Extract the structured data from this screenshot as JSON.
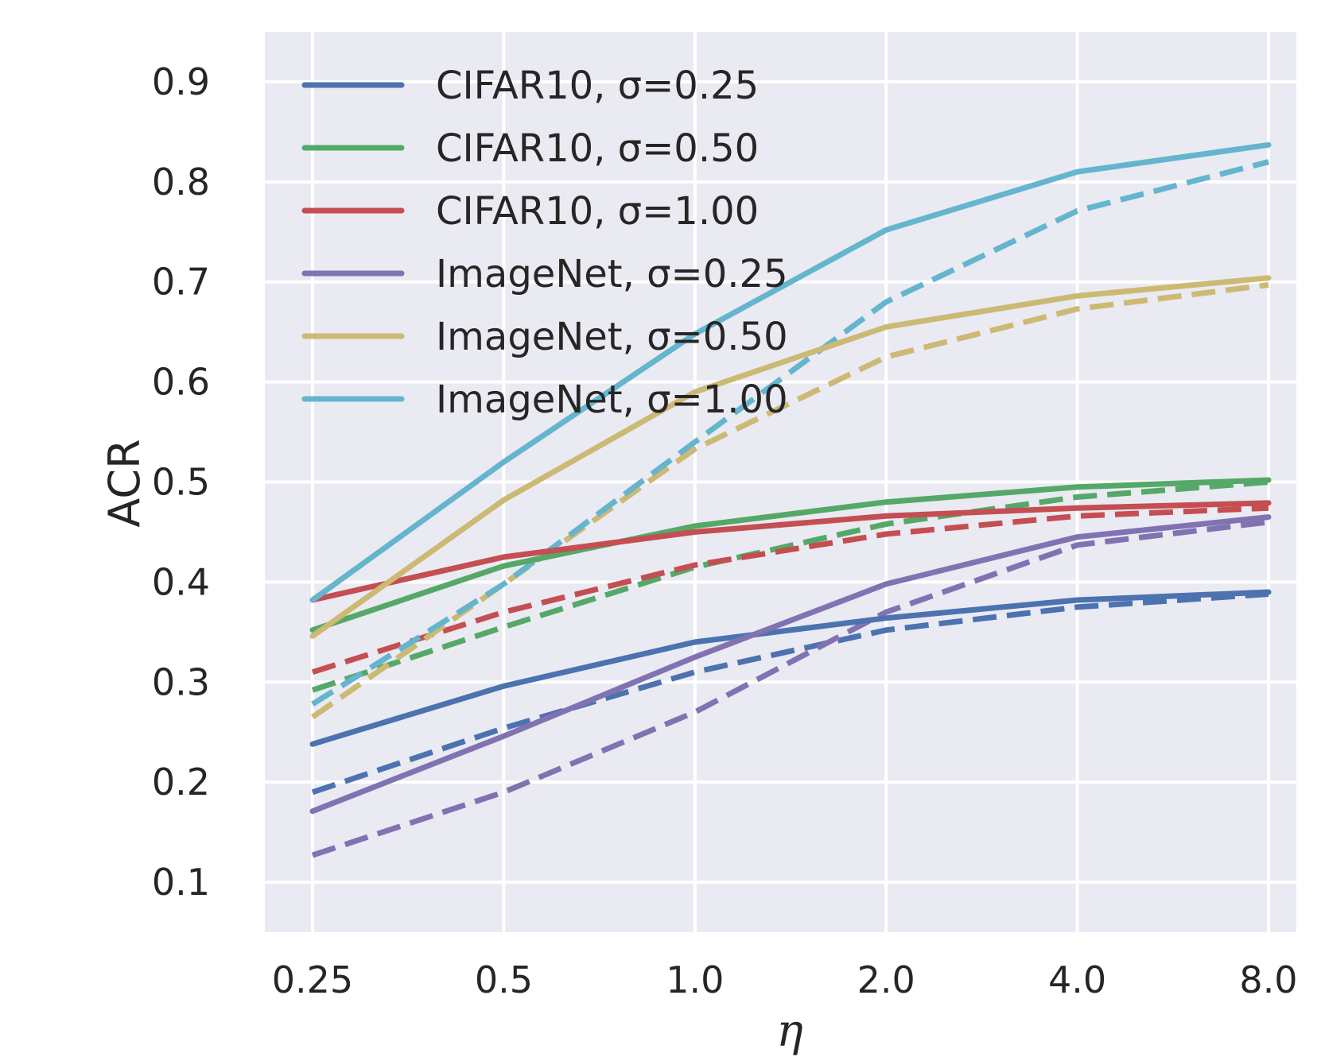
{
  "chart_data": {
    "type": "line",
    "title": "",
    "xlabel": "η",
    "ylabel": "ACR",
    "x_scale": "categorical",
    "categories": [
      "0.25",
      "0.5",
      "1.0",
      "2.0",
      "4.0",
      "8.0"
    ],
    "ylim": [
      0.05,
      0.95
    ],
    "yticks": [
      0.1,
      0.2,
      0.3,
      0.4,
      0.5,
      0.6,
      0.7,
      0.8,
      0.9
    ],
    "ytick_labels": [
      "0.1",
      "0.2",
      "0.3",
      "0.4",
      "0.5",
      "0.6",
      "0.7",
      "0.8",
      "0.9"
    ],
    "grid": true,
    "background": "#EAEAF2",
    "legend_position": "top-left",
    "legend_note": "solid and dashed lines share the same colour per setting",
    "series": [
      {
        "name": "CIFAR10, σ=0.25",
        "dataset": "CIFAR10",
        "sigma": "0.25",
        "color": "#4C72B0",
        "solid": [
          0.238,
          0.296,
          0.34,
          0.364,
          0.382,
          0.39
        ],
        "dashed": [
          0.19,
          0.254,
          0.31,
          0.352,
          0.375,
          0.388
        ]
      },
      {
        "name": "CIFAR10, σ=0.50",
        "dataset": "CIFAR10",
        "sigma": "0.50",
        "color": "#55A868",
        "solid": [
          0.352,
          0.416,
          0.456,
          0.48,
          0.495,
          0.502
        ],
        "dashed": [
          0.292,
          0.355,
          0.415,
          0.458,
          0.485,
          0.5
        ]
      },
      {
        "name": "CIFAR10, σ=1.00",
        "dataset": "CIFAR10",
        "sigma": "1.00",
        "color": "#C44E52",
        "solid": [
          0.382,
          0.425,
          0.45,
          0.466,
          0.474,
          0.479
        ],
        "dashed": [
          0.31,
          0.37,
          0.417,
          0.448,
          0.466,
          0.474
        ]
      },
      {
        "name": "ImageNet, σ=0.25",
        "dataset": "ImageNet",
        "sigma": "0.25",
        "color": "#8172B2",
        "solid": [
          0.171,
          0.246,
          0.325,
          0.398,
          0.445,
          0.465
        ],
        "dashed": [
          0.127,
          0.19,
          0.27,
          0.37,
          0.437,
          0.46
        ]
      },
      {
        "name": "ImageNet, σ=0.50",
        "dataset": "ImageNet",
        "sigma": "0.50",
        "color": "#CCB974",
        "solid": [
          0.346,
          0.482,
          0.59,
          0.655,
          0.686,
          0.704
        ],
        "dashed": [
          0.265,
          0.398,
          0.533,
          0.625,
          0.673,
          0.697
        ]
      },
      {
        "name": "ImageNet, σ=1.00",
        "dataset": "ImageNet",
        "sigma": "1.00",
        "color": "#64B5CD",
        "solid": [
          0.382,
          0.52,
          0.648,
          0.752,
          0.81,
          0.837
        ],
        "dashed": [
          0.278,
          0.398,
          0.54,
          0.68,
          0.771,
          0.82
        ]
      }
    ]
  }
}
